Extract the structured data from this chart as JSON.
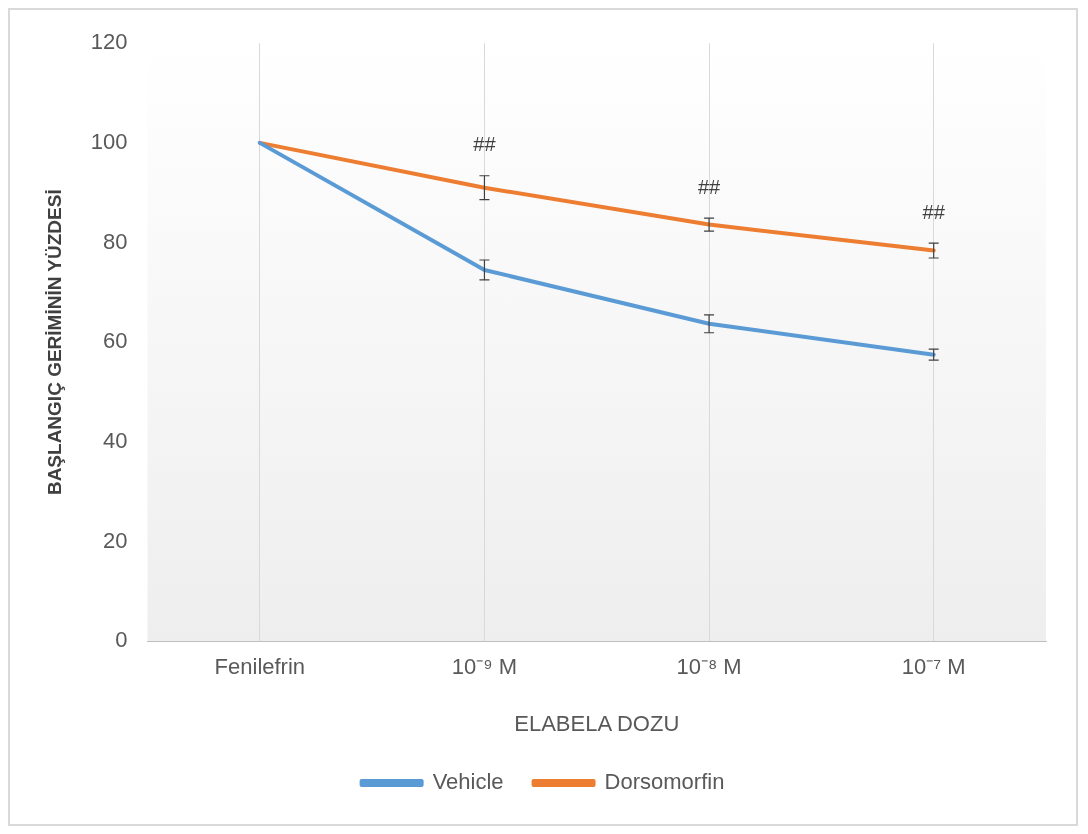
{
  "chart_data": {
    "type": "line",
    "xlabel": "ELABELA DOZU",
    "ylabel": "BAŞLANGIÇ GERİMİNİN YÜZDESİ",
    "categories": [
      "Fenilefrin",
      "10⁻⁹ M",
      "10⁻⁸ M",
      "10⁻⁷ M"
    ],
    "series": [
      {
        "name": "Vehicle",
        "color": "#5b9bd5",
        "values": [
          100,
          74.5,
          63.7,
          57.5
        ],
        "errors": [
          null,
          2,
          1.8,
          1.1
        ]
      },
      {
        "name": "Dorsomorfin",
        "color": "#ed7d31",
        "values": [
          100,
          91,
          83.6,
          78.4
        ],
        "errors": [
          null,
          2.4,
          1.3,
          1.5
        ]
      }
    ],
    "ylim": [
      0,
      120
    ],
    "yticks": [
      0,
      20,
      40,
      60,
      80,
      100,
      120
    ],
    "annotations": [
      "##",
      "##",
      "##"
    ],
    "grid": "x",
    "legend": "bottom",
    "line_style": "solid"
  }
}
